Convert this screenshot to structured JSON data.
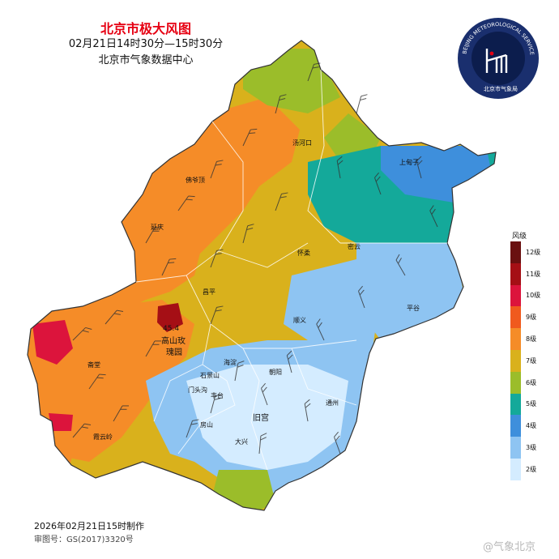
{
  "title": "北京市极大风图",
  "time_range": "02月21日14时30分—15时30分",
  "source": "北京市气象数据中心",
  "made_at": "2026年02月21日15时制作",
  "review_no": "审图号：GS(2017)3320号",
  "watermark": "@气象北京",
  "logo": {
    "ring_text": "BEIJING METEOROLOGICAL SERVICE",
    "cn_text": "北京市气象局",
    "colors": {
      "outer": "#1a2f6e",
      "inner": "#0c1d4d"
    }
  },
  "legend": {
    "title": "风级",
    "levels": [
      {
        "label": "12级",
        "color": "#6a1010"
      },
      {
        "label": "11级",
        "color": "#a50f15"
      },
      {
        "label": "10级",
        "color": "#dc143c"
      },
      {
        "label": "9级",
        "color": "#f05a1e"
      },
      {
        "label": "8级",
        "color": "#f58c28"
      },
      {
        "label": "7级",
        "color": "#d9b11c"
      },
      {
        "label": "6级",
        "color": "#9bbd2a"
      },
      {
        "label": "5级",
        "color": "#14a99a"
      },
      {
        "label": "4级",
        "color": "#3e8fdc"
      },
      {
        "label": "3级",
        "color": "#8ec4f2"
      },
      {
        "label": "2级",
        "color": "#d4ecff"
      }
    ]
  },
  "max_marker": "45.4",
  "places": [
    "汤河口",
    "上甸子",
    "佛爷顶",
    "延庆",
    "怀柔",
    "密云",
    "昌平",
    "平谷",
    "顺义",
    "高山玫瑰园",
    "斋堂",
    "海淀",
    "朝阳",
    "石景山",
    "门头沟",
    "丰台",
    "旧宫",
    "通州",
    "房山",
    "霞云岭",
    "大兴"
  ]
}
